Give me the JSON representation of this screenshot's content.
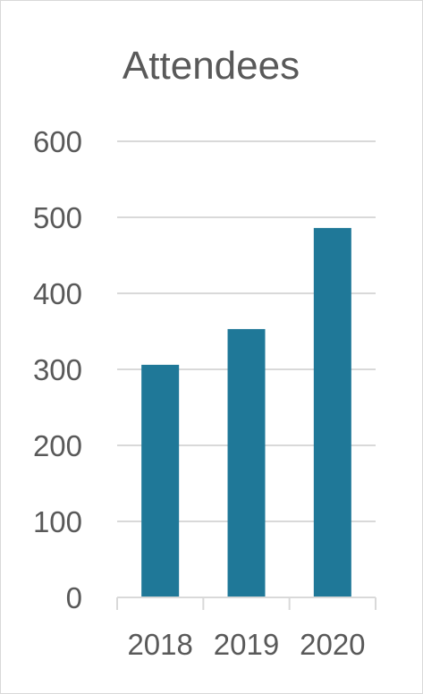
{
  "chart_data": {
    "type": "bar",
    "title": "Attendees",
    "categories": [
      "2018",
      "2019",
      "2020"
    ],
    "values": [
      306,
      353,
      486
    ],
    "ylim": [
      0,
      600
    ],
    "yticks": [
      0,
      100,
      200,
      300,
      400,
      500,
      600
    ],
    "grid": true,
    "legend": "none",
    "bar_color": "#1f7898"
  }
}
